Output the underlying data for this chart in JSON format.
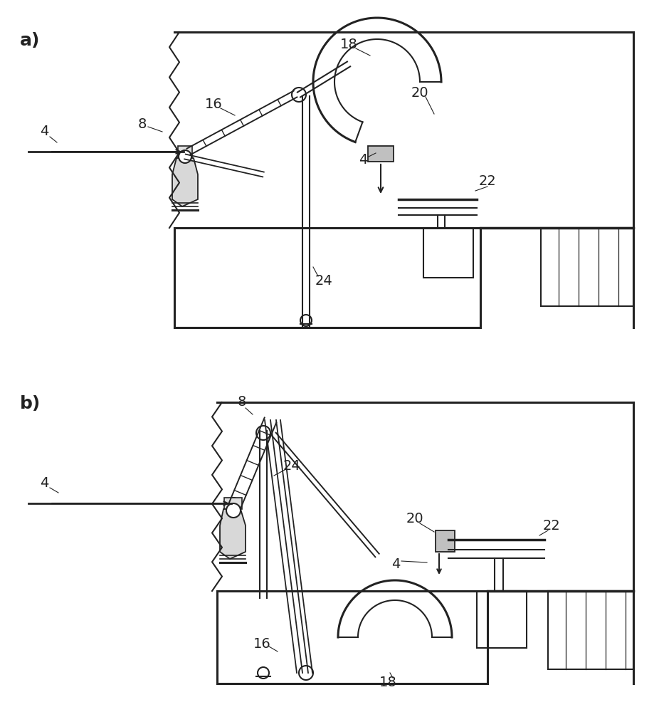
{
  "fig_width": 9.26,
  "fig_height": 10.0,
  "bg_color": "#ffffff",
  "line_color": "#222222",
  "label_a": "a)",
  "label_b": "b)"
}
